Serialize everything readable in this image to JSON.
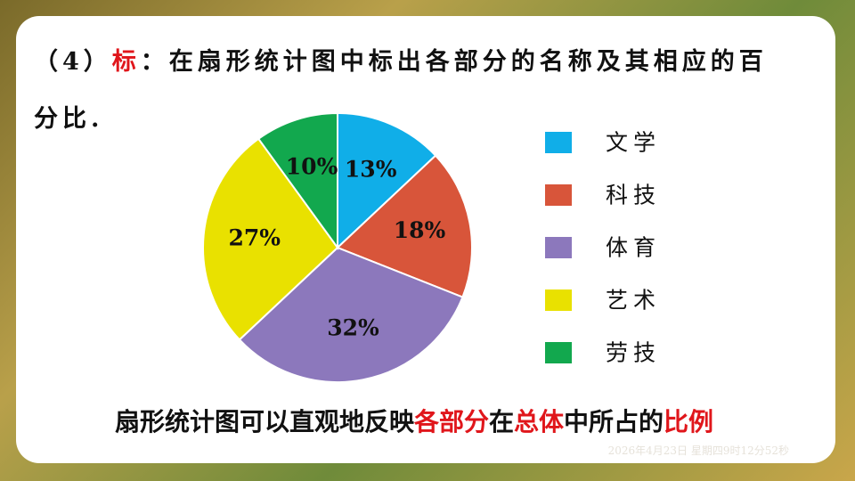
{
  "heading": {
    "number": "（4）",
    "keyword": "标",
    "text": "：在扇形统计图中标出各部分的名称及其相应的百分比."
  },
  "chart_data": {
    "type": "pie",
    "categories": [
      "文学",
      "科技",
      "体育",
      "艺术",
      "劳技"
    ],
    "values": [
      13,
      18,
      32,
      27,
      10
    ],
    "value_labels": [
      "13%",
      "18%",
      "32%",
      "27%",
      "10%"
    ],
    "colors": [
      "#10aee8",
      "#d8553a",
      "#8c78bc",
      "#e9e100",
      "#12a84e"
    ],
    "legend": "right"
  },
  "conclusion": [
    {
      "text": "扇形统计图可以直观地反映",
      "color": "#111111"
    },
    {
      "text": "各部分",
      "color": "#e0161b"
    },
    {
      "text": "在",
      "color": "#111111"
    },
    {
      "text": "总体",
      "color": "#e0161b"
    },
    {
      "text": "中所占的",
      "color": "#111111"
    },
    {
      "text": "比例",
      "color": "#e0161b"
    }
  ],
  "timestamp": "2026年4月23日 星期四9时12分52秒"
}
